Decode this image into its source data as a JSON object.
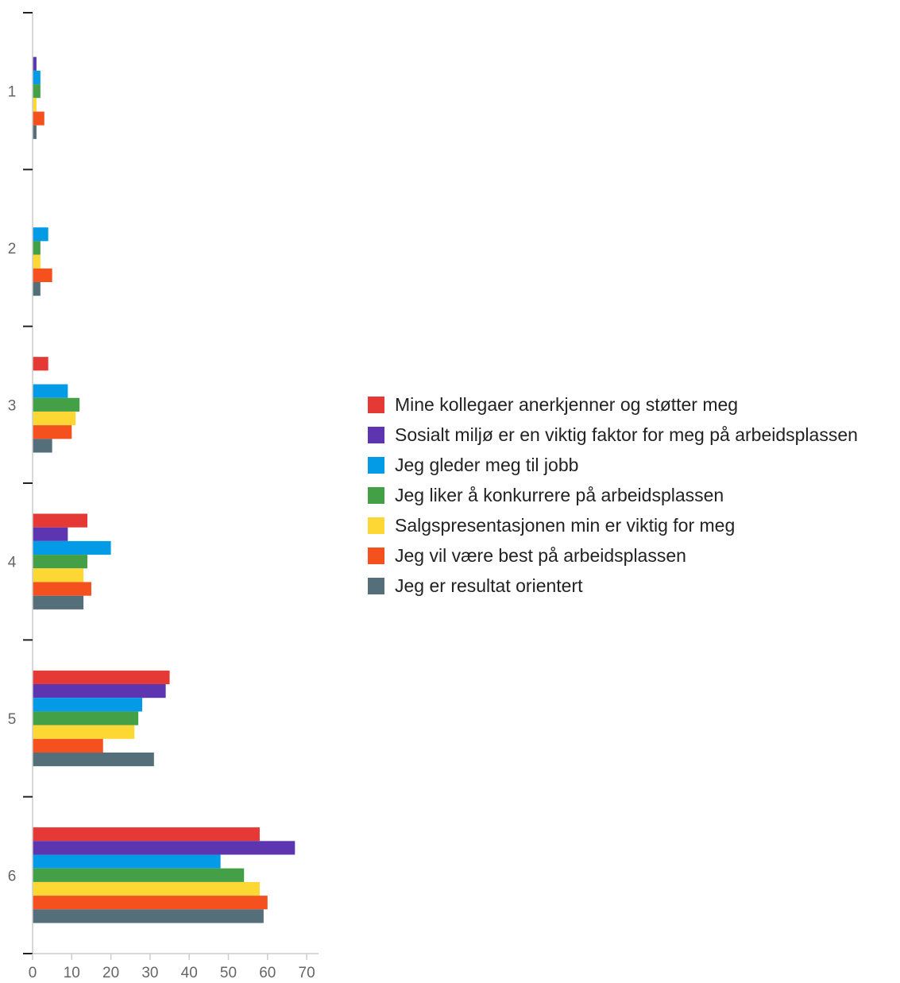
{
  "chart_data": {
    "type": "bar",
    "orientation": "horizontal",
    "categories": [
      "1",
      "2",
      "3",
      "4",
      "5",
      "6"
    ],
    "xlim": [
      0,
      70
    ],
    "xticks": [
      "0",
      "10",
      "20",
      "30",
      "40",
      "50",
      "60",
      "70"
    ],
    "legend_position": "right",
    "grid": false,
    "series": [
      {
        "name": "Mine kollegaer anerkjenner og støtter meg",
        "color": "#e53935",
        "values": [
          0,
          0,
          4,
          14,
          35,
          58
        ]
      },
      {
        "name": "Sosialt miljø er en viktig faktor for meg på arbeidsplassen",
        "color": "#5e35b1",
        "values": [
          1,
          0,
          0,
          9,
          34,
          67
        ]
      },
      {
        "name": "Jeg gleder meg til jobb",
        "color": "#039be5",
        "values": [
          2,
          4,
          9,
          20,
          28,
          48
        ]
      },
      {
        "name": "Jeg liker å konkurrere på arbeidsplassen",
        "color": "#43a047",
        "values": [
          2,
          2,
          12,
          14,
          27,
          54
        ]
      },
      {
        "name": "Salgspresentasjonen min er viktig for meg",
        "color": "#fdd835",
        "values": [
          1,
          2,
          11,
          13,
          26,
          58
        ]
      },
      {
        "name": "Jeg vil være best på arbeidsplassen",
        "color": "#f4511e",
        "values": [
          3,
          5,
          10,
          15,
          18,
          60
        ]
      },
      {
        "name": "Jeg er resultat orientert",
        "color": "#546e7a",
        "values": [
          1,
          2,
          5,
          13,
          31,
          59
        ]
      }
    ]
  }
}
